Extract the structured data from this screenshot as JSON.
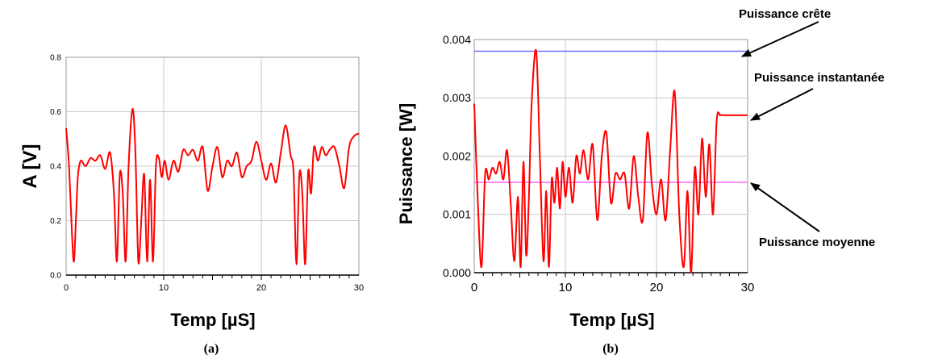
{
  "chart_data": [
    {
      "type": "line",
      "caption": "(a)",
      "xlabel": "Temp [µS]",
      "ylabel": "A [V]",
      "xlim": [
        0,
        30
      ],
      "ylim": [
        0,
        0.8
      ],
      "x_ticks": [
        "0",
        "10",
        "20",
        "30"
      ],
      "y_ticks": [
        "0.0",
        "0.2",
        "0.4",
        "0.6",
        "0.8"
      ],
      "grid": true,
      "series": [
        {
          "color": "#ff0000",
          "x": [
            0,
            0.3,
            0.6,
            0.8,
            1.0,
            1.2,
            1.5,
            2.0,
            2.5,
            3.0,
            3.5,
            4.0,
            4.5,
            4.9,
            5.2,
            5.5,
            5.8,
            6.1,
            6.4,
            6.8,
            7.1,
            7.4,
            7.7,
            8.0,
            8.3,
            8.6,
            8.9,
            9.2,
            9.5,
            9.8,
            10.1,
            10.5,
            11.0,
            11.5,
            12.0,
            12.5,
            13.0,
            13.5,
            14.0,
            14.5,
            15.0,
            15.5,
            16.0,
            16.5,
            17.0,
            17.5,
            18.0,
            18.5,
            19.0,
            19.5,
            20.0,
            20.5,
            21.0,
            21.5,
            22.0,
            22.5,
            23.0,
            23.3,
            23.6,
            23.9,
            24.2,
            24.5,
            24.8,
            25.1,
            25.4,
            25.8,
            26.2,
            26.6,
            27.0,
            27.5,
            28.0,
            28.5,
            29.0,
            29.5,
            30.0
          ],
          "y": [
            0.54,
            0.4,
            0.15,
            0.05,
            0.2,
            0.36,
            0.42,
            0.4,
            0.43,
            0.42,
            0.44,
            0.39,
            0.45,
            0.3,
            0.05,
            0.37,
            0.3,
            0.05,
            0.4,
            0.61,
            0.45,
            0.05,
            0.2,
            0.37,
            0.05,
            0.35,
            0.05,
            0.4,
            0.43,
            0.36,
            0.42,
            0.35,
            0.42,
            0.38,
            0.46,
            0.44,
            0.46,
            0.42,
            0.47,
            0.31,
            0.4,
            0.47,
            0.36,
            0.42,
            0.4,
            0.45,
            0.36,
            0.4,
            0.42,
            0.49,
            0.42,
            0.35,
            0.41,
            0.34,
            0.45,
            0.55,
            0.44,
            0.38,
            0.04,
            0.37,
            0.3,
            0.04,
            0.38,
            0.3,
            0.47,
            0.42,
            0.47,
            0.44,
            0.46,
            0.47,
            0.4,
            0.32,
            0.47,
            0.51,
            0.52
          ]
        }
      ]
    },
    {
      "type": "line",
      "caption": "(b)",
      "xlabel": "Temp [µS]",
      "ylabel": "Puissance [W]",
      "xlim": [
        0,
        30
      ],
      "ylim": [
        0,
        0.004
      ],
      "x_ticks": [
        "0",
        "10",
        "20",
        "30"
      ],
      "y_ticks": [
        "0.000",
        "0.001",
        "0.002",
        "0.003",
        "0.004"
      ],
      "grid": true,
      "reference_lines": [
        {
          "y": 0.0038,
          "color": "#6f6fff"
        },
        {
          "y": 0.00155,
          "color": "#ff66ff"
        }
      ],
      "annotations": [
        "Puissance crête",
        "Puissance instantanée",
        "Puissance moyenne"
      ],
      "series": [
        {
          "color": "#ff0000",
          "x": [
            0,
            0.4,
            0.8,
            1.2,
            1.6,
            2.0,
            2.4,
            2.8,
            3.2,
            3.6,
            4.0,
            4.4,
            4.8,
            5.1,
            5.4,
            5.7,
            6.0,
            6.3,
            6.8,
            7.2,
            7.6,
            7.9,
            8.2,
            8.5,
            8.8,
            9.1,
            9.4,
            9.7,
            10.0,
            10.4,
            10.8,
            11.2,
            11.6,
            12.0,
            12.5,
            13.0,
            13.5,
            14.0,
            14.5,
            15.0,
            15.5,
            16.0,
            16.5,
            17.0,
            17.5,
            18.0,
            18.5,
            19.0,
            19.5,
            20.0,
            20.5,
            21.0,
            21.5,
            22.0,
            22.5,
            23.0,
            23.4,
            23.8,
            24.2,
            24.6,
            25.0,
            25.4,
            25.8,
            26.2,
            26.6,
            27.0,
            27.4,
            27.8,
            28.2,
            28.6,
            29.0,
            29.4,
            29.7,
            30.0
          ],
          "y": [
            0.0029,
            0.0012,
            0.0001,
            0.0017,
            0.0016,
            0.0018,
            0.0017,
            0.0019,
            0.0016,
            0.0021,
            0.0012,
            0.0002,
            0.0013,
            0.0001,
            0.0019,
            0.0003,
            0.0013,
            0.0029,
            0.0038,
            0.002,
            0.0002,
            0.0014,
            0.0001,
            0.0016,
            0.0012,
            0.0018,
            0.0011,
            0.0019,
            0.0013,
            0.0018,
            0.0012,
            0.002,
            0.0017,
            0.0021,
            0.0016,
            0.0022,
            0.0009,
            0.002,
            0.0024,
            0.0012,
            0.0017,
            0.0016,
            0.0017,
            0.0011,
            0.002,
            0.0013,
            0.0009,
            0.0024,
            0.0015,
            0.001,
            0.0016,
            0.0009,
            0.0021,
            0.0031,
            0.001,
            0.0001,
            0.0014,
            0.0,
            0.0018,
            0.001,
            0.0023,
            0.0013,
            0.0022,
            0.001,
            0.0026,
            0.0027,
            0.0027,
            0.0027,
            0.0027,
            0.0027,
            0.0027,
            0.0027,
            0.0027,
            0.0027
          ]
        }
      ]
    }
  ]
}
